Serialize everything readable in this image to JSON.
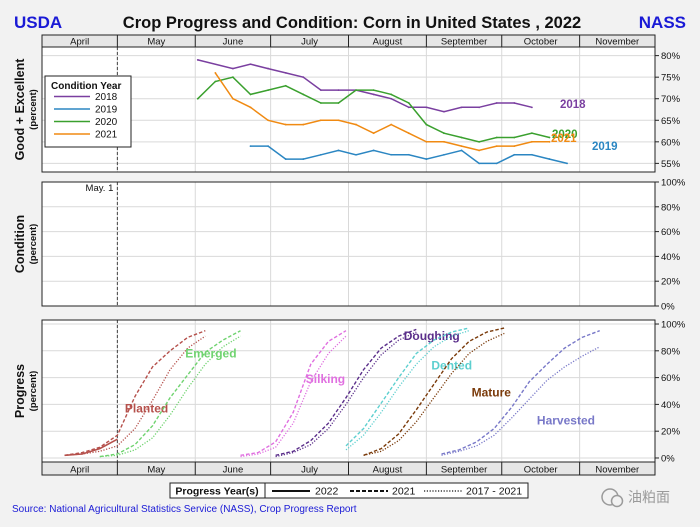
{
  "header": {
    "left": "USDA",
    "title": "Crop Progress and Condition: Corn in United States , 2022",
    "right": "NASS"
  },
  "months": [
    "April",
    "May",
    "June",
    "July",
    "August",
    "September",
    "October",
    "November"
  ],
  "source": "Source: National Agricultural Statistics Service (NASS), Crop Progress Report",
  "watermark": "油粕面",
  "colors": {
    "usda": "#1a1ad6",
    "y2018": "#7a3fa0",
    "y2019": "#2b86c2",
    "y2020": "#3aa02e",
    "y2021": "#f08a12",
    "planted": "#b5504b",
    "emerged": "#6fd36f",
    "silking": "#e070e0",
    "doughing": "#5a2e8a",
    "dented": "#5ccfcf",
    "mature": "#7a3a0a",
    "harvested": "#7878c8"
  },
  "chart_data": [
    {
      "id": "good_excellent",
      "type": "line",
      "ylabel": "Good + Excellent",
      "ysub": "(percent)",
      "ylim": [
        53,
        82
      ],
      "yticks": [
        55,
        60,
        65,
        70,
        75,
        80
      ],
      "ytick_labels": [
        "55%",
        "60%",
        "65%",
        "70%",
        "75%",
        "80%"
      ],
      "legend_title": "Condition Year",
      "x_unit": "day of year",
      "series": [
        {
          "name": "2018",
          "key": "y2018",
          "end_label": "2018",
          "x": [
            153,
            167,
            174,
            181,
            188,
            195,
            202,
            209,
            216,
            223,
            230,
            237,
            244,
            251,
            258,
            265,
            272,
            279,
            286
          ],
          "y": [
            79,
            77,
            78,
            77,
            76,
            75,
            72,
            72,
            72,
            71,
            70,
            68,
            68,
            67,
            68,
            68,
            69,
            69,
            68
          ]
        },
        {
          "name": "2019",
          "key": "y2019",
          "end_label": "2019",
          "x": [
            174,
            181,
            188,
            195,
            202,
            209,
            216,
            223,
            230,
            237,
            244,
            251,
            258,
            265,
            272,
            279,
            286,
            293,
            300
          ],
          "y": [
            59,
            59,
            56,
            56,
            57,
            58,
            57,
            58,
            57,
            57,
            56,
            57,
            58,
            55,
            55,
            57,
            57,
            56,
            55
          ]
        },
        {
          "name": "2020",
          "key": "y2020",
          "end_label": "2020",
          "x": [
            153,
            160,
            167,
            174,
            181,
            188,
            195,
            202,
            209,
            216,
            223,
            230,
            237,
            244,
            251,
            258,
            265,
            272,
            279,
            286,
            293
          ],
          "y": [
            70,
            74,
            75,
            71,
            72,
            73,
            71,
            69,
            69,
            72,
            72,
            71,
            69,
            64,
            62,
            61,
            60,
            61,
            61,
            62,
            61
          ]
        },
        {
          "name": "2021",
          "key": "y2021",
          "end_label": "2021",
          "x": [
            160,
            167,
            174,
            181,
            188,
            195,
            202,
            209,
            216,
            223,
            230,
            237,
            244,
            251,
            258,
            265,
            272,
            279,
            286,
            293
          ],
          "y": [
            76,
            70,
            68,
            65,
            64,
            64,
            65,
            65,
            64,
            62,
            64,
            62,
            60,
            60,
            59,
            58,
            59,
            59,
            60,
            60
          ]
        }
      ]
    },
    {
      "id": "condition_2022",
      "type": "line",
      "ylabel": "Condition",
      "ysub": "(percent)",
      "ylim": [
        0,
        100
      ],
      "yticks": [
        0,
        20,
        40,
        60,
        80,
        100
      ],
      "ytick_labels": [
        "0%",
        "20%",
        "40%",
        "60%",
        "80%",
        "100%"
      ],
      "annotation": "May.  1",
      "annotation_x": 121,
      "series": []
    },
    {
      "id": "progress",
      "type": "line",
      "ylabel": "Progress",
      "ysub": "(percent)",
      "ylim": [
        -3,
        103
      ],
      "yticks": [
        0,
        20,
        40,
        60,
        80,
        100
      ],
      "ytick_labels": [
        "0%",
        "20%",
        "40%",
        "60%",
        "80%",
        "100%"
      ],
      "progress_legend_title": "Progress Year(s)",
      "progress_legend_items": [
        "2022",
        "2021",
        "2017 - 2021"
      ],
      "current_date_x": 121,
      "stages": [
        {
          "name": "Planted",
          "key": "planted",
          "label_x": 124,
          "label_y": 34,
          "y2022": {
            "x": [
              100,
              107,
              114,
              121
            ],
            "y": [
              2,
              3,
              7,
              14
            ]
          },
          "y2021": {
            "x": [
              100,
              107,
              114,
              121,
              128,
              135,
              142,
              149,
              156
            ],
            "y": [
              2,
              4,
              8,
              17,
              46,
              68,
              80,
              90,
              95
            ]
          },
          "avg": {
            "x": [
              100,
              107,
              114,
              121,
              128,
              135,
              142,
              149,
              156
            ],
            "y": [
              2,
              3,
              5,
              9,
              22,
              43,
              66,
              82,
              91
            ]
          }
        },
        {
          "name": "Emerged",
          "key": "emerged",
          "label_x": 148,
          "label_y": 75,
          "y2021": {
            "x": [
              114,
              121,
              128,
              135,
              142,
              149,
              156,
              163,
              170
            ],
            "y": [
              1,
              3,
              10,
              24,
              45,
              62,
              79,
              88,
              95
            ]
          },
          "avg": {
            "x": [
              114,
              121,
              128,
              135,
              142,
              149,
              156,
              163,
              170
            ],
            "y": [
              1,
              2,
              6,
              15,
              32,
              52,
              70,
              83,
              91
            ]
          }
        },
        {
          "name": "Silking",
          "key": "silking",
          "label_x": 196,
          "label_y": 56,
          "y2021": {
            "x": [
              170,
              177,
              184,
              191,
              198,
              205,
              212
            ],
            "y": [
              2,
              4,
              12,
              34,
              70,
              87,
              95
            ]
          },
          "avg": {
            "x": [
              170,
              177,
              184,
              191,
              198,
              205,
              212
            ],
            "y": [
              1,
              3,
              8,
              26,
              57,
              78,
              91
            ]
          }
        },
        {
          "name": "Doughing",
          "key": "doughing",
          "label_x": 235,
          "label_y": 88,
          "y2021": {
            "x": [
              184,
              191,
              198,
              205,
              212,
              219,
              226,
              233,
              240
            ],
            "y": [
              2,
              5,
              13,
              26,
              45,
              66,
              82,
              91,
              96
            ]
          },
          "avg": {
            "x": [
              184,
              191,
              198,
              205,
              212,
              219,
              226,
              233,
              240
            ],
            "y": [
              1,
              4,
              10,
              22,
              40,
              60,
              77,
              88,
              94
            ]
          }
        },
        {
          "name": "Dented",
          "key": "dented",
          "label_x": 246,
          "label_y": 66,
          "y2021": {
            "x": [
              212,
              219,
              226,
              233,
              240,
              247,
              254,
              261
            ],
            "y": [
              9,
              22,
              41,
              60,
              78,
              88,
              94,
              97
            ]
          },
          "avg": {
            "x": [
              212,
              219,
              226,
              233,
              240,
              247,
              254,
              261
            ],
            "y": [
              6,
              17,
              34,
              53,
              70,
              83,
              91,
              95
            ]
          }
        },
        {
          "name": "Mature",
          "key": "mature",
          "label_x": 262,
          "label_y": 46,
          "y2021": {
            "x": [
              219,
              226,
              233,
              240,
              247,
              254,
              261,
              268,
              275
            ],
            "y": [
              2,
              7,
              18,
              36,
              55,
              74,
              87,
              94,
              97
            ]
          },
          "avg": {
            "x": [
              219,
              226,
              233,
              240,
              247,
              254,
              261,
              268,
              275
            ],
            "y": [
              2,
              5,
              13,
              27,
              45,
              63,
              78,
              87,
              93
            ]
          }
        },
        {
          "name": "Harvested",
          "key": "harvested",
          "label_x": 288,
          "label_y": 25,
          "y2021": {
            "x": [
              250,
              257,
              264,
              271,
              278,
              285,
              292,
              299,
              306,
              313
            ],
            "y": [
              3,
              6,
              12,
              22,
              38,
              57,
              70,
              82,
              90,
              95
            ]
          },
          "avg": {
            "x": [
              250,
              257,
              264,
              271,
              278,
              285,
              292,
              299,
              306,
              313
            ],
            "y": [
              2,
              5,
              9,
              17,
              30,
              44,
              58,
              68,
              76,
              83
            ]
          }
        }
      ]
    }
  ]
}
